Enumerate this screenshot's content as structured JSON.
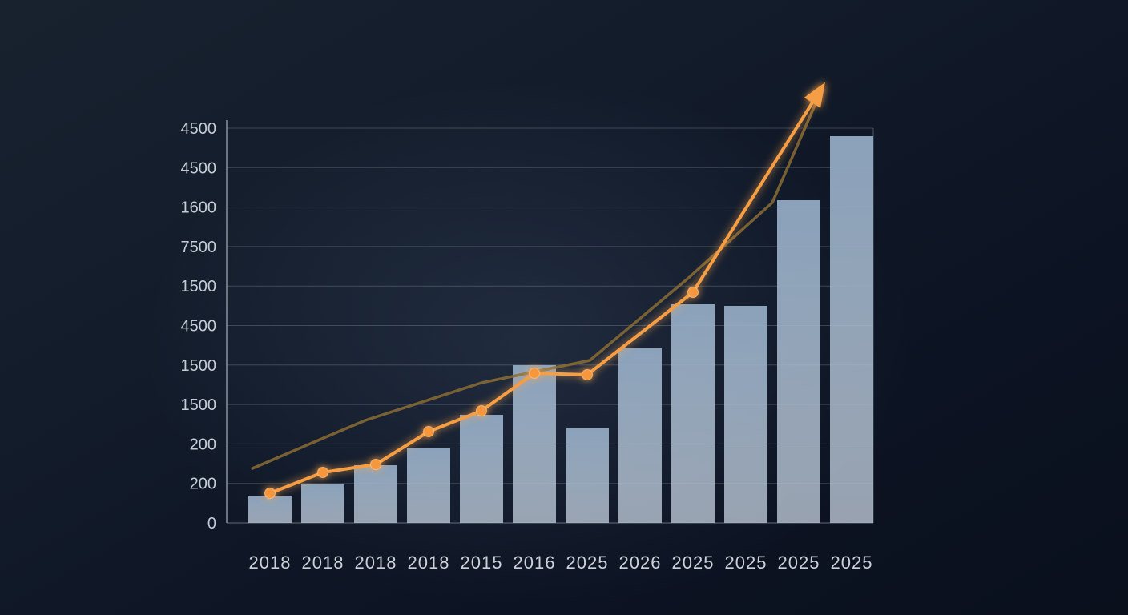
{
  "chart_data": {
    "type": "bar",
    "title": "",
    "xlabel": "",
    "ylabel": "",
    "categories": [
      "2018",
      "2018",
      "2018",
      "2018",
      "2015",
      "2016",
      "2025",
      "2026",
      "2025",
      "2025",
      "2025",
      "2025"
    ],
    "y_axis": {
      "tick_labels_top_to_bottom": [
        "4500",
        "4500",
        "1600",
        "7500",
        "1500",
        "4500",
        "1500",
        "1500",
        "200",
        "200",
        "0"
      ],
      "grid": true,
      "unit_max": 500
    },
    "bars": {
      "name": "yearly-values",
      "values": [
        33,
        48,
        72,
        93,
        135,
        197,
        118,
        218,
        273,
        271,
        403,
        483
      ]
    },
    "lines": [
      {
        "name": "highlight-growth-line",
        "color": "#f59e44",
        "glow": true,
        "arrow": true,
        "marker_count": 8,
        "x_index": [
          0,
          1,
          2,
          3,
          4,
          5,
          6,
          8,
          10.45
        ],
        "values": [
          37,
          63,
          73,
          114,
          140,
          187,
          185,
          288,
          545
        ]
      },
      {
        "name": "secondary-trend-line",
        "color": "#8a6c34",
        "glow": false,
        "arrow": false,
        "marker_count": 0,
        "x_index": [
          -0.33,
          0.8,
          1.8,
          4,
          6.05,
          7.9,
          9.5,
          10.38
        ],
        "values": [
          68,
          100,
          128,
          175,
          203,
          305,
          400,
          533
        ]
      }
    ],
    "legend_position": "none",
    "colors": {
      "background_top": "#18222f",
      "background_bottom": "#0a101c",
      "bar_top": "#91a9c2",
      "bar_bottom": "#bfcbd9",
      "grid": "#aab3bf",
      "axis": "#8a93a0",
      "tick_text": "#c6ccd5",
      "category_text": "#ccd1d9",
      "line_orange": "#f59e44",
      "line_brown": "#8a6c34",
      "marker": "#f6973c",
      "glow": "#ffa64d"
    }
  }
}
